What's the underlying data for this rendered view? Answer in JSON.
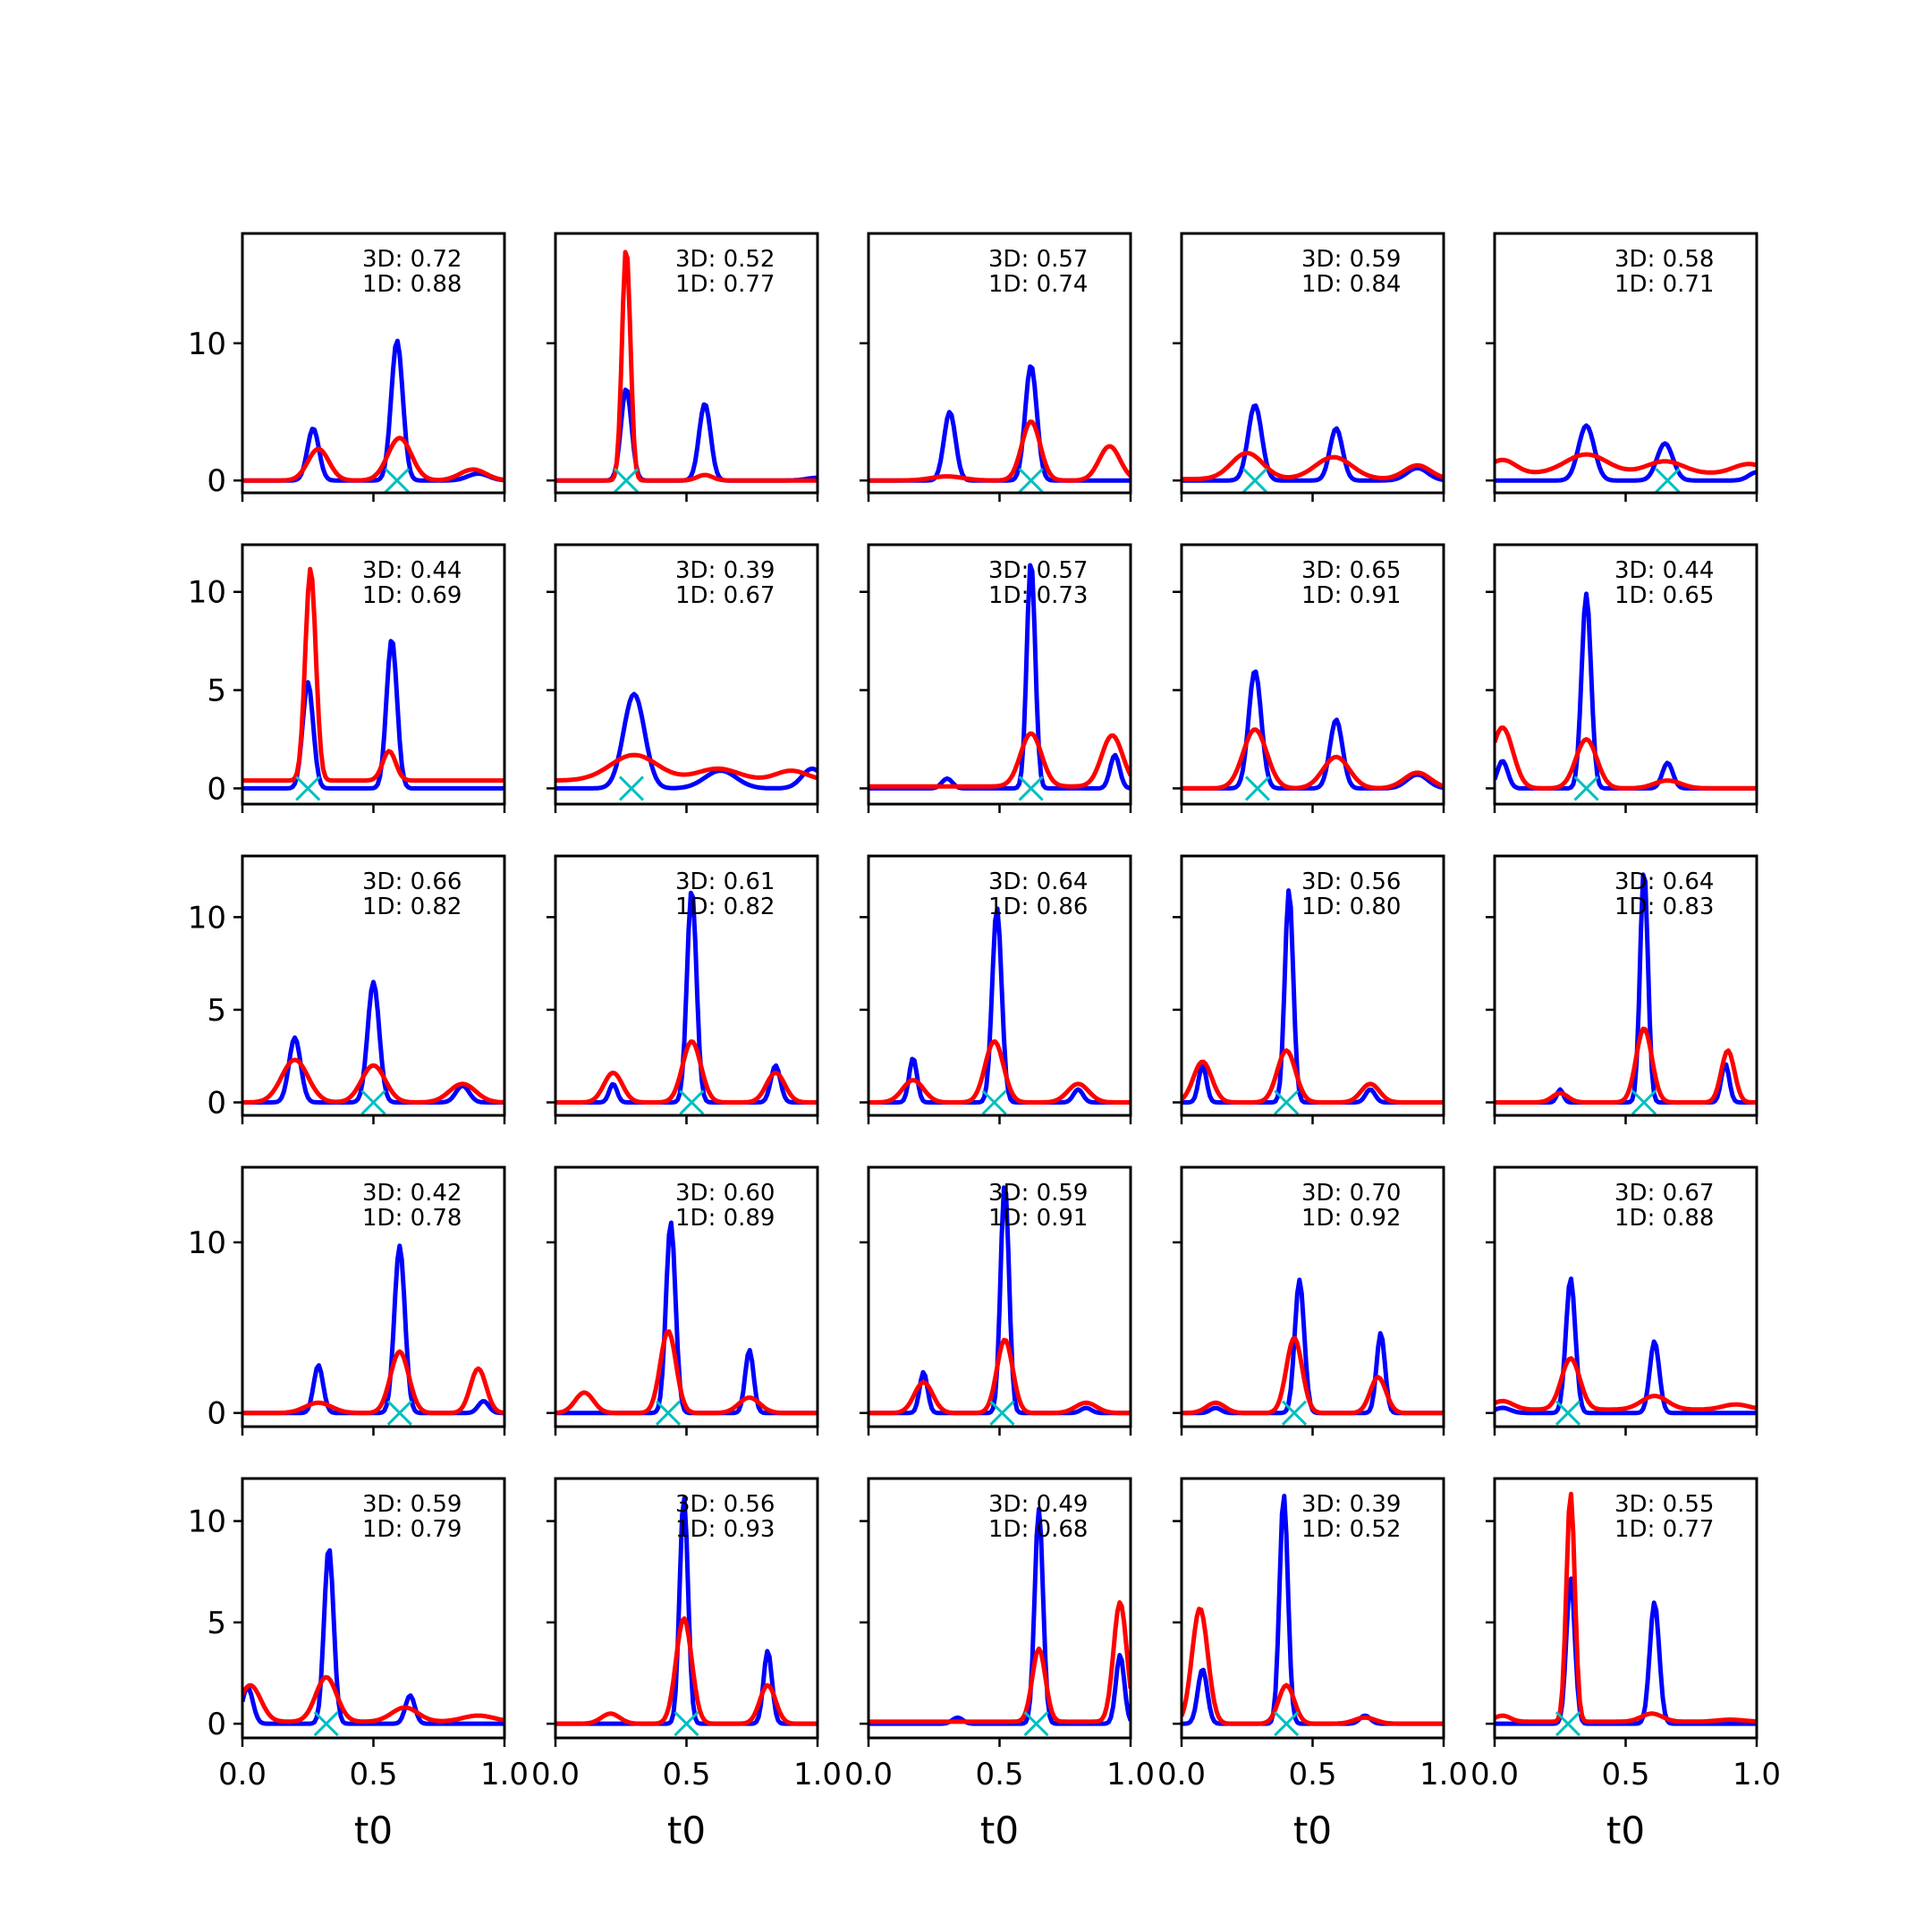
{
  "colors": {
    "blue": "#0000ff",
    "red": "#ff0000",
    "marker": "#00bfbf",
    "axes": "#000000"
  },
  "chart_data": {
    "type": "line",
    "layout": {
      "rows": 5,
      "cols": 5,
      "sharex": true,
      "sharey": "row"
    },
    "xlim": [
      0,
      1
    ],
    "x_ticks": [
      0,
      0.5,
      1
    ],
    "x_tick_labels": [
      "0.0",
      "0.5",
      "1.0"
    ],
    "xlabel": "t0",
    "rows": [
      {
        "ylim": [
          -0.9,
          18
        ],
        "y_ticks": [
          0,
          10
        ],
        "y_tick_labels": [
          "0",
          "10"
        ]
      },
      {
        "ylim": [
          -0.8,
          12.4
        ],
        "y_ticks": [
          0,
          5,
          10
        ],
        "y_tick_labels": [
          "0",
          "5",
          "10"
        ]
      },
      {
        "ylim": [
          -0.7,
          13.3
        ],
        "y_ticks": [
          0,
          5,
          10
        ],
        "y_tick_labels": [
          "0",
          "5",
          "10"
        ]
      },
      {
        "ylim": [
          -0.8,
          14.4
        ],
        "y_ticks": [
          0,
          10
        ],
        "y_tick_labels": [
          "0",
          "10"
        ]
      },
      {
        "ylim": [
          -0.7,
          12.1
        ],
        "y_ticks": [
          0,
          5,
          10
        ],
        "y_tick_labels": [
          "0",
          "5",
          "10"
        ]
      }
    ],
    "panels": [
      {
        "row": 0,
        "col": 0,
        "l3": "3D: 0.72",
        "l1": "1D: 0.88",
        "marker_x": 0.59,
        "blue": [
          [
            0.27,
            3.8,
            0.022
          ],
          [
            0.59,
            10.2,
            0.022
          ],
          [
            0.9,
            0.5,
            0.04
          ]
        ],
        "red": [
          [
            0.29,
            2.3,
            0.04
          ],
          [
            0.6,
            3.1,
            0.045
          ],
          [
            0.88,
            0.8,
            0.05
          ]
        ],
        "red_base": 0
      },
      {
        "row": 0,
        "col": 1,
        "l3": "3D: 0.52",
        "l1": "1D: 0.77",
        "marker_x": 0.27,
        "blue": [
          [
            0.27,
            6.7,
            0.02
          ],
          [
            0.57,
            5.6,
            0.022
          ],
          [
            1.0,
            0.2,
            0.04
          ]
        ],
        "red": [
          [
            0.27,
            17.0,
            0.016
          ],
          [
            0.57,
            0.4,
            0.03
          ]
        ],
        "red_base": 0
      },
      {
        "row": 0,
        "col": 2,
        "l3": "3D: 0.57",
        "l1": "1D: 0.74",
        "marker_x": 0.62,
        "blue": [
          [
            0.31,
            5.0,
            0.022
          ],
          [
            0.62,
            8.4,
            0.022
          ]
        ],
        "red": [
          [
            0.3,
            0.3,
            0.06
          ],
          [
            0.62,
            4.3,
            0.035
          ],
          [
            0.92,
            2.5,
            0.04
          ]
        ],
        "red_base": 0
      },
      {
        "row": 0,
        "col": 3,
        "l3": "3D: 0.59",
        "l1": "1D: 0.84",
        "marker_x": 0.28,
        "blue": [
          [
            0.28,
            5.5,
            0.026
          ],
          [
            0.59,
            3.8,
            0.024
          ],
          [
            0.9,
            0.9,
            0.04
          ]
        ],
        "red": [
          [
            0.25,
            1.9,
            0.06
          ],
          [
            0.58,
            1.6,
            0.07
          ],
          [
            0.9,
            1.0,
            0.05
          ]
        ],
        "red_base": 0.1
      },
      {
        "row": 0,
        "col": 4,
        "l3": "3D: 0.58",
        "l1": "1D: 0.71",
        "marker_x": 0.66,
        "blue": [
          [
            0.35,
            4.0,
            0.03
          ],
          [
            0.65,
            2.7,
            0.03
          ],
          [
            1.0,
            0.6,
            0.03
          ]
        ],
        "red": [
          [
            0.03,
            1.0,
            0.05
          ],
          [
            0.35,
            1.4,
            0.08
          ],
          [
            0.65,
            0.9,
            0.07
          ],
          [
            0.97,
            0.7,
            0.06
          ]
        ],
        "red_base": 0.5
      },
      {
        "row": 1,
        "col": 0,
        "l3": "3D: 0.44",
        "l1": "1D: 0.69",
        "marker_x": 0.25,
        "blue": [
          [
            0.25,
            5.4,
            0.02
          ],
          [
            0.57,
            7.6,
            0.02
          ]
        ],
        "red": [
          [
            0.26,
            10.8,
            0.02
          ],
          [
            0.56,
            1.5,
            0.025
          ]
        ],
        "red_base": 0.4
      },
      {
        "row": 1,
        "col": 1,
        "l3": "3D: 0.39",
        "l1": "1D: 0.67",
        "marker_x": 0.29,
        "blue": [
          [
            0.3,
            4.8,
            0.04
          ],
          [
            0.63,
            0.9,
            0.06
          ],
          [
            0.98,
            1.0,
            0.04
          ]
        ],
        "red": [
          [
            0.3,
            1.3,
            0.09
          ],
          [
            0.62,
            0.6,
            0.08
          ],
          [
            0.9,
            0.5,
            0.06
          ]
        ],
        "red_base": 0.4
      },
      {
        "row": 1,
        "col": 2,
        "l3": "3D: 0.57",
        "l1": "1D: 0.73",
        "marker_x": 0.62,
        "blue": [
          [
            0.3,
            0.5,
            0.02
          ],
          [
            0.62,
            11.6,
            0.016
          ],
          [
            0.94,
            1.7,
            0.018
          ]
        ],
        "red": [
          [
            0.62,
            2.7,
            0.04
          ],
          [
            0.93,
            2.6,
            0.04
          ]
        ],
        "red_base": 0.1
      },
      {
        "row": 1,
        "col": 3,
        "l3": "3D: 0.65",
        "l1": "1D: 0.91",
        "marker_x": 0.29,
        "blue": [
          [
            0.28,
            6.0,
            0.024
          ],
          [
            0.59,
            3.5,
            0.024
          ],
          [
            0.9,
            0.7,
            0.04
          ]
        ],
        "red": [
          [
            0.28,
            3.0,
            0.045
          ],
          [
            0.59,
            1.6,
            0.05
          ],
          [
            0.9,
            0.8,
            0.05
          ]
        ],
        "red_base": 0
      },
      {
        "row": 1,
        "col": 4,
        "l3": "3D: 0.44",
        "l1": "1D: 0.65",
        "marker_x": 0.35,
        "blue": [
          [
            0.03,
            1.4,
            0.02
          ],
          [
            0.35,
            9.9,
            0.018
          ],
          [
            0.66,
            1.3,
            0.02
          ]
        ],
        "red": [
          [
            0.03,
            3.1,
            0.04
          ],
          [
            0.35,
            2.5,
            0.04
          ],
          [
            0.66,
            0.4,
            0.05
          ]
        ],
        "red_base": 0
      },
      {
        "row": 2,
        "col": 0,
        "l3": "3D: 0.66",
        "l1": "1D: 0.82",
        "marker_x": 0.5,
        "blue": [
          [
            0.2,
            3.5,
            0.022
          ],
          [
            0.5,
            6.5,
            0.022
          ],
          [
            0.84,
            0.9,
            0.025
          ]
        ],
        "red": [
          [
            0.2,
            2.3,
            0.05
          ],
          [
            0.5,
            2.0,
            0.045
          ],
          [
            0.84,
            1.0,
            0.05
          ]
        ],
        "red_base": 0
      },
      {
        "row": 2,
        "col": 1,
        "l3": "3D: 0.61",
        "l1": "1D: 0.82",
        "marker_x": 0.52,
        "blue": [
          [
            0.22,
            1.0,
            0.015
          ],
          [
            0.52,
            11.5,
            0.018
          ],
          [
            0.84,
            2.0,
            0.018
          ]
        ],
        "red": [
          [
            0.22,
            1.6,
            0.035
          ],
          [
            0.52,
            3.3,
            0.035
          ],
          [
            0.84,
            1.6,
            0.035
          ]
        ],
        "red_base": 0
      },
      {
        "row": 2,
        "col": 2,
        "l3": "3D: 0.64",
        "l1": "1D: 0.86",
        "marker_x": 0.48,
        "blue": [
          [
            0.17,
            2.4,
            0.015
          ],
          [
            0.49,
            10.5,
            0.018
          ],
          [
            0.8,
            0.7,
            0.018
          ]
        ],
        "red": [
          [
            0.17,
            1.2,
            0.04
          ],
          [
            0.48,
            3.3,
            0.035
          ],
          [
            0.8,
            1.0,
            0.04
          ]
        ],
        "red_base": 0
      },
      {
        "row": 2,
        "col": 3,
        "l3": "3D: 0.56",
        "l1": "1D: 0.80",
        "marker_x": 0.4,
        "blue": [
          [
            0.08,
            2.0,
            0.015
          ],
          [
            0.41,
            11.5,
            0.016
          ],
          [
            0.72,
            0.7,
            0.018
          ]
        ],
        "red": [
          [
            0.08,
            2.2,
            0.035
          ],
          [
            0.4,
            2.8,
            0.035
          ],
          [
            0.72,
            1.0,
            0.035
          ]
        ],
        "red_base": 0
      },
      {
        "row": 2,
        "col": 4,
        "l3": "3D: 0.64",
        "l1": "1D: 0.83",
        "marker_x": 0.57,
        "blue": [
          [
            0.25,
            0.7,
            0.012
          ],
          [
            0.57,
            12.6,
            0.015
          ],
          [
            0.88,
            2.1,
            0.015
          ]
        ],
        "red": [
          [
            0.25,
            0.5,
            0.03
          ],
          [
            0.57,
            4.0,
            0.03
          ],
          [
            0.89,
            2.8,
            0.025
          ]
        ],
        "red_base": 0
      },
      {
        "row": 3,
        "col": 0,
        "l3": "3D: 0.42",
        "l1": "1D: 0.78",
        "marker_x": 0.6,
        "blue": [
          [
            0.29,
            2.8,
            0.018
          ],
          [
            0.6,
            9.8,
            0.02
          ],
          [
            0.92,
            0.7,
            0.02
          ]
        ],
        "red": [
          [
            0.29,
            0.6,
            0.05
          ],
          [
            0.6,
            3.6,
            0.035
          ],
          [
            0.9,
            2.6,
            0.03
          ]
        ],
        "red_base": 0
      },
      {
        "row": 3,
        "col": 1,
        "l3": "3D: 0.60",
        "l1": "1D: 0.89",
        "marker_x": 0.43,
        "blue": [
          [
            0.44,
            11.2,
            0.018
          ],
          [
            0.74,
            3.7,
            0.016
          ]
        ],
        "red": [
          [
            0.11,
            1.2,
            0.035
          ],
          [
            0.43,
            4.8,
            0.03
          ],
          [
            0.74,
            0.9,
            0.04
          ]
        ],
        "red_base": 0
      },
      {
        "row": 3,
        "col": 2,
        "l3": "3D: 0.59",
        "l1": "1D: 0.91",
        "marker_x": 0.51,
        "blue": [
          [
            0.21,
            2.4,
            0.015
          ],
          [
            0.52,
            13.5,
            0.016
          ],
          [
            0.83,
            0.3,
            0.02
          ]
        ],
        "red": [
          [
            0.21,
            1.8,
            0.035
          ],
          [
            0.52,
            4.3,
            0.03
          ],
          [
            0.83,
            0.6,
            0.04
          ]
        ],
        "red_base": 0
      },
      {
        "row": 3,
        "col": 3,
        "l3": "3D: 0.70",
        "l1": "1D: 0.92",
        "marker_x": 0.43,
        "blue": [
          [
            0.13,
            0.3,
            0.02
          ],
          [
            0.45,
            7.8,
            0.018
          ],
          [
            0.76,
            4.7,
            0.016
          ]
        ],
        "red": [
          [
            0.13,
            0.6,
            0.035
          ],
          [
            0.43,
            4.4,
            0.03
          ],
          [
            0.75,
            2.1,
            0.03
          ]
        ],
        "red_base": 0
      },
      {
        "row": 3,
        "col": 4,
        "l3": "3D: 0.67",
        "l1": "1D: 0.88",
        "marker_x": 0.28,
        "blue": [
          [
            0.03,
            0.3,
            0.03
          ],
          [
            0.29,
            7.9,
            0.018
          ],
          [
            0.61,
            4.2,
            0.018
          ]
        ],
        "red": [
          [
            0.03,
            0.5,
            0.04
          ],
          [
            0.29,
            3.0,
            0.035
          ],
          [
            0.61,
            0.8,
            0.05
          ],
          [
            0.92,
            0.3,
            0.05
          ]
        ],
        "red_base": 0.2
      },
      {
        "row": 4,
        "col": 0,
        "l3": "3D: 0.59",
        "l1": "1D: 0.79",
        "marker_x": 0.32,
        "blue": [
          [
            0.02,
            1.8,
            0.02
          ],
          [
            0.33,
            8.7,
            0.018
          ],
          [
            0.64,
            1.4,
            0.018
          ]
        ],
        "red": [
          [
            0.03,
            1.8,
            0.04
          ],
          [
            0.32,
            2.2,
            0.04
          ],
          [
            0.62,
            0.7,
            0.05
          ],
          [
            0.9,
            0.3,
            0.06
          ]
        ],
        "red_base": 0.1
      },
      {
        "row": 4,
        "col": 1,
        "l3": "3D: 0.56",
        "l1": "1D: 0.93",
        "marker_x": 0.5,
        "blue": [
          [
            0.49,
            11.2,
            0.016
          ],
          [
            0.81,
            3.6,
            0.016
          ]
        ],
        "red": [
          [
            0.21,
            0.5,
            0.035
          ],
          [
            0.49,
            5.2,
            0.03
          ],
          [
            0.81,
            1.9,
            0.03
          ]
        ],
        "red_base": 0
      },
      {
        "row": 4,
        "col": 2,
        "l3": "3D: 0.49",
        "l1": "1D: 0.68",
        "marker_x": 0.64,
        "blue": [
          [
            0.34,
            0.3,
            0.02
          ],
          [
            0.65,
            10.6,
            0.016
          ],
          [
            0.96,
            3.4,
            0.016
          ]
        ],
        "red": [
          [
            0.65,
            3.6,
            0.025
          ],
          [
            0.96,
            5.9,
            0.025
          ]
        ],
        "red_base": 0.1
      },
      {
        "row": 4,
        "col": 3,
        "l3": "3D: 0.39",
        "l1": "1D: 0.52",
        "marker_x": 0.4,
        "blue": [
          [
            0.08,
            2.7,
            0.018
          ],
          [
            0.39,
            11.3,
            0.016
          ],
          [
            0.7,
            0.4,
            0.02
          ]
        ],
        "red": [
          [
            0.07,
            5.7,
            0.03
          ],
          [
            0.4,
            1.9,
            0.03
          ],
          [
            0.7,
            0.3,
            0.04
          ]
        ],
        "red_base": 0
      },
      {
        "row": 4,
        "col": 4,
        "l3": "3D: 0.55",
        "l1": "1D: 0.77",
        "marker_x": 0.28,
        "blue": [
          [
            0.29,
            7.2,
            0.016
          ],
          [
            0.61,
            6.0,
            0.018
          ]
        ],
        "red": [
          [
            0.03,
            0.3,
            0.03
          ],
          [
            0.29,
            11.3,
            0.016
          ],
          [
            0.6,
            0.4,
            0.04
          ],
          [
            0.9,
            0.1,
            0.05
          ]
        ],
        "red_base": 0.1
      }
    ]
  }
}
